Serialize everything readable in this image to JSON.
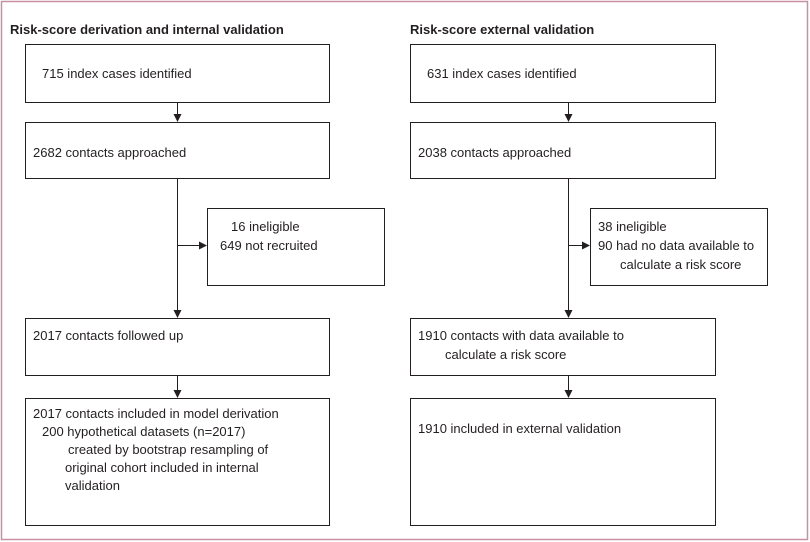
{
  "left": {
    "title": "Risk-score derivation and internal validation",
    "boxes": [
      {
        "lines": [
          "715 index cases identified"
        ]
      },
      {
        "lines": [
          "2682 contacts approached"
        ]
      },
      {
        "lines": [
          "2017 contacts followed up"
        ]
      },
      {
        "lines": [
          "2017 contacts included in model derivation",
          "200 hypothetical datasets (n=2017)",
          "created by bootstrap resampling of",
          "original cohort included in internal",
          "validation"
        ]
      }
    ],
    "side": {
      "lines": [
        "16 ineligible",
        "649 not recruited"
      ]
    }
  },
  "right": {
    "title": "Risk-score external validation",
    "boxes": [
      {
        "lines": [
          "631 index cases identified"
        ]
      },
      {
        "lines": [
          "2038 contacts approached"
        ]
      },
      {
        "lines": [
          "1910 contacts with data available to",
          "calculate a risk score"
        ]
      },
      {
        "lines": [
          "1910 included in external validation"
        ]
      }
    ],
    "side": {
      "lines": [
        "38 ineligible",
        "90 had no data available to",
        "calculate a risk score"
      ]
    }
  }
}
